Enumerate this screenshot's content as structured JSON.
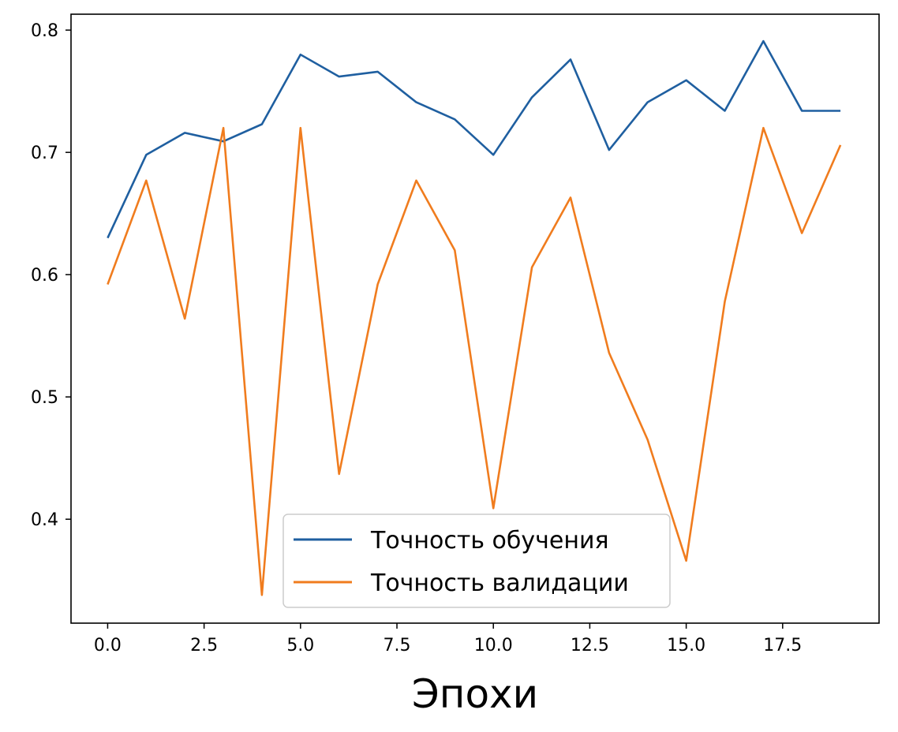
{
  "chart_data": {
    "type": "line",
    "title": "",
    "xlabel": "Эпохи",
    "ylabel": "",
    "x": [
      0,
      1,
      2,
      3,
      4,
      5,
      6,
      7,
      8,
      9,
      10,
      11,
      12,
      13,
      14,
      15,
      16,
      17,
      18,
      19
    ],
    "series": [
      {
        "name": "Точность обучения",
        "color": "#1f5fa0",
        "values": [
          0.63,
          0.698,
          0.716,
          0.709,
          0.723,
          0.78,
          0.762,
          0.766,
          0.741,
          0.727,
          0.698,
          0.745,
          0.776,
          0.702,
          0.741,
          0.759,
          0.734,
          0.791,
          0.734,
          0.734
        ]
      },
      {
        "name": "Точность валидации",
        "color": "#f07c1e",
        "values": [
          0.592,
          0.677,
          0.564,
          0.72,
          0.338,
          0.72,
          0.437,
          0.592,
          0.677,
          0.62,
          0.409,
          0.606,
          0.663,
          0.536,
          0.465,
          0.366,
          0.578,
          0.72,
          0.634,
          0.706
        ]
      }
    ],
    "xlim": [
      -0.95,
      20.0
    ],
    "ylim": [
      0.315,
      0.813
    ],
    "xticks": [
      0.0,
      2.5,
      5.0,
      7.5,
      10.0,
      12.5,
      15.0,
      17.5
    ],
    "xtick_labels": [
      "0.0",
      "2.5",
      "5.0",
      "7.5",
      "10.0",
      "12.5",
      "15.0",
      "17.5"
    ],
    "yticks": [
      0.4,
      0.5,
      0.6,
      0.7,
      0.8
    ],
    "ytick_labels": [
      "0.4",
      "0.5",
      "0.6",
      "0.7",
      "0.8"
    ],
    "grid": false,
    "legend_position": "lower-center"
  }
}
